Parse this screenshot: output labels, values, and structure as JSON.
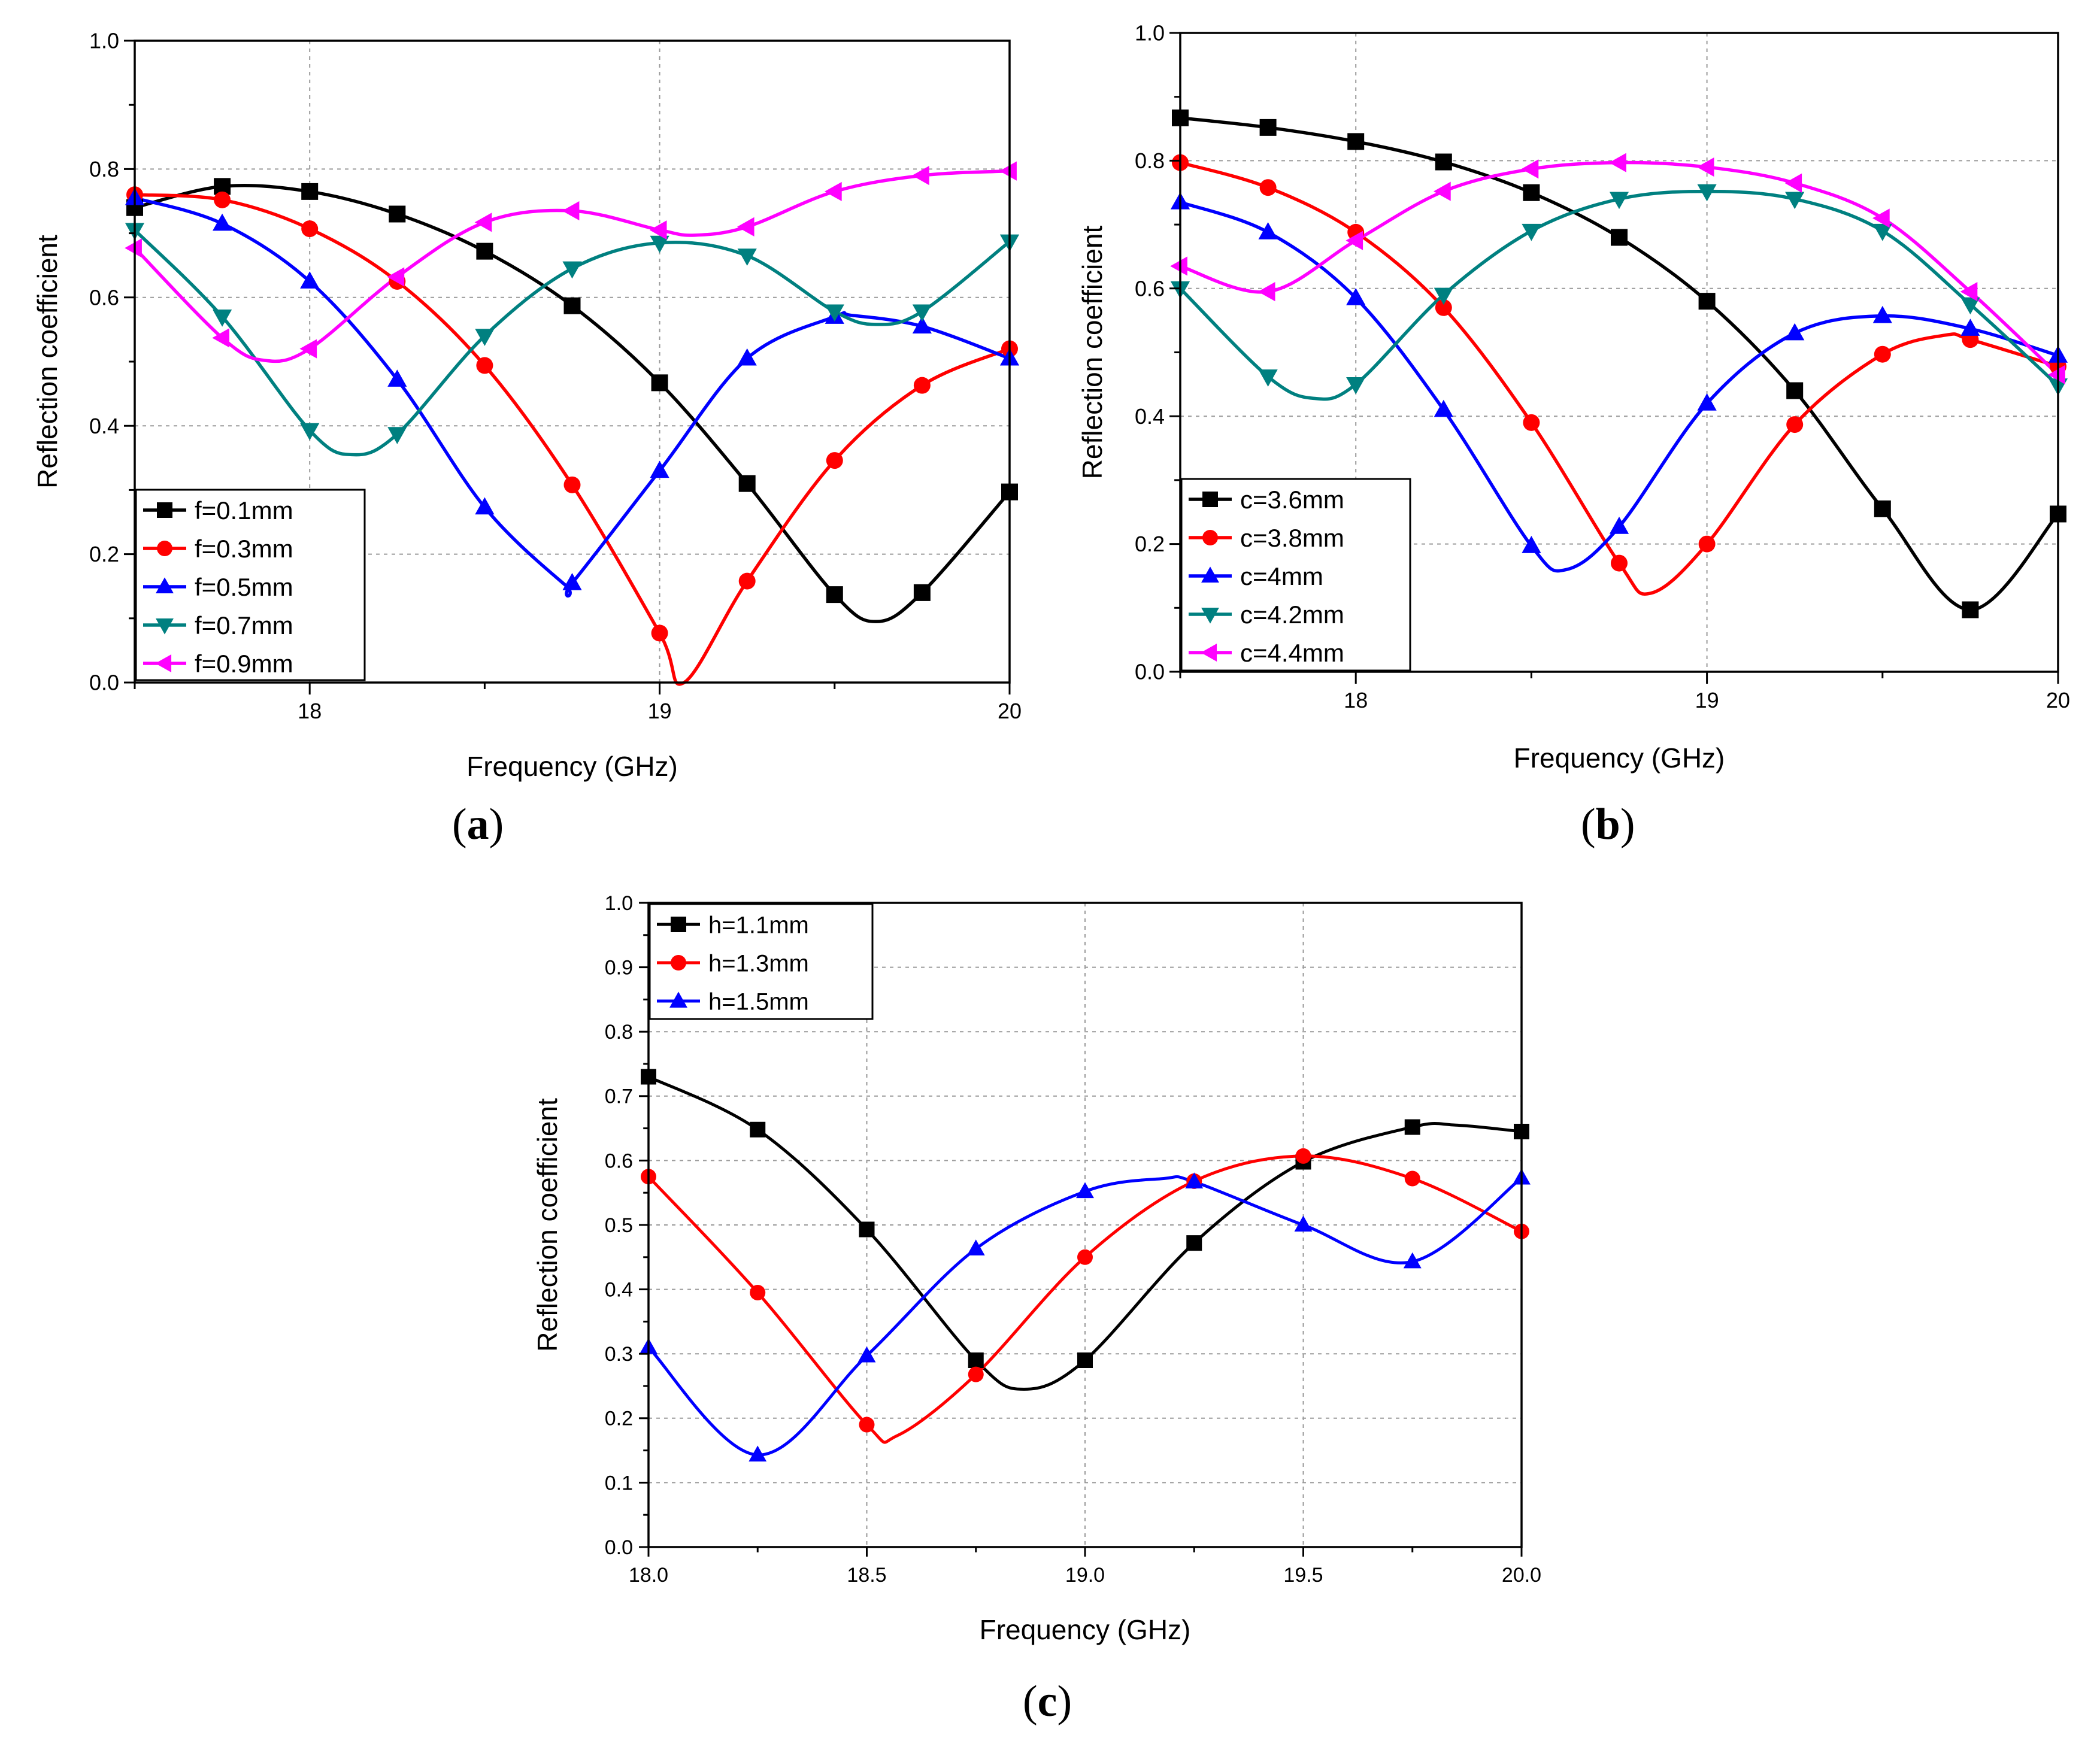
{
  "figure": {
    "captions": [
      {
        "open": "(",
        "letter": "a",
        "close": ")"
      },
      {
        "open": "(",
        "letter": "b",
        "close": ")"
      },
      {
        "open": "(",
        "letter": "c",
        "close": ")"
      }
    ]
  },
  "chart_data": [
    {
      "type": "line",
      "panel": "a",
      "xlabel": "Frequency (GHz)",
      "ylabel": "Reflection coefficient",
      "xlim": [
        17.5,
        20
      ],
      "ylim": [
        0,
        1
      ],
      "xticks": [
        18,
        19,
        20
      ],
      "xtick_labels": [
        "18",
        "19",
        "20"
      ],
      "yticks": [
        0,
        0.2,
        0.4,
        0.6,
        0.8,
        1.0
      ],
      "ytick_labels": [
        "0.0",
        "0.2",
        "0.4",
        "0.6",
        "0.8",
        "1.0"
      ],
      "grid": true,
      "legend_position": "bottom-left",
      "series": [
        {
          "name": "f=0.1mm",
          "color": "#000000",
          "marker": "square",
          "curve_x": [
            17.5,
            17.75,
            18,
            18.25,
            18.5,
            18.75,
            19,
            19.25,
            19.5,
            19.62,
            19.75,
            20
          ],
          "curve_y": [
            0.74,
            0.773,
            0.765,
            0.73,
            0.672,
            0.587,
            0.467,
            0.31,
            0.137,
            0.095,
            0.14,
            0.297
          ],
          "marker_x": [
            17.5,
            17.75,
            18,
            18.25,
            18.5,
            18.75,
            19,
            19.25,
            19.5,
            19.75,
            20
          ],
          "marker_y": [
            0.74,
            0.773,
            0.765,
            0.73,
            0.672,
            0.587,
            0.467,
            0.31,
            0.137,
            0.14,
            0.297
          ]
        },
        {
          "name": "f=0.3mm",
          "color": "#ff0000",
          "marker": "circle",
          "curve_x": [
            17.5,
            17.75,
            18,
            18.25,
            18.5,
            18.75,
            19,
            19.07,
            19.25,
            19.5,
            19.75,
            20
          ],
          "curve_y": [
            0.76,
            0.752,
            0.707,
            0.625,
            0.494,
            0.308,
            0.077,
            0.0,
            0.158,
            0.346,
            0.463,
            0.52
          ],
          "marker_x": [
            17.5,
            17.75,
            18,
            18.25,
            18.5,
            18.75,
            19,
            19.25,
            19.5,
            19.75,
            20
          ],
          "marker_y": [
            0.76,
            0.752,
            0.707,
            0.625,
            0.494,
            0.308,
            0.077,
            0.158,
            0.346,
            0.463,
            0.52
          ]
        },
        {
          "name": "f=0.5mm",
          "color": "#0000ff",
          "marker": "triangle-up",
          "curve_x": [
            17.5,
            17.75,
            18,
            18.25,
            18.5,
            18.73,
            18.75,
            19,
            19.25,
            19.5,
            19.55,
            19.75,
            20
          ],
          "curve_y": [
            0.755,
            0.715,
            0.625,
            0.472,
            0.273,
            0.152,
            0.155,
            0.33,
            0.505,
            0.57,
            0.572,
            0.555,
            0.505
          ],
          "marker_x": [
            17.5,
            17.75,
            18,
            18.25,
            18.5,
            18.75,
            19,
            19.25,
            19.5,
            19.75,
            20
          ],
          "marker_y": [
            0.755,
            0.715,
            0.625,
            0.472,
            0.273,
            0.155,
            0.33,
            0.505,
            0.57,
            0.555,
            0.505
          ]
        },
        {
          "name": "f=0.7mm",
          "color": "#008080",
          "marker": "triangle-down",
          "curve_x": [
            17.5,
            17.75,
            18,
            18.12,
            18.25,
            18.5,
            18.75,
            19,
            19.25,
            19.5,
            19.62,
            19.75,
            20
          ],
          "curve_y": [
            0.705,
            0.57,
            0.393,
            0.355,
            0.387,
            0.54,
            0.645,
            0.685,
            0.665,
            0.578,
            0.558,
            0.578,
            0.687
          ],
          "marker_x": [
            17.5,
            17.75,
            18,
            18.25,
            18.5,
            18.75,
            19,
            19.25,
            19.5,
            19.75,
            20
          ],
          "marker_y": [
            0.705,
            0.57,
            0.393,
            0.387,
            0.54,
            0.645,
            0.685,
            0.665,
            0.578,
            0.578,
            0.687
          ]
        },
        {
          "name": "f=0.9mm",
          "color": "#ff00ff",
          "marker": "triangle-left",
          "curve_x": [
            17.5,
            17.75,
            17.87,
            18,
            18.25,
            18.5,
            18.75,
            19,
            19.1,
            19.25,
            19.5,
            19.75,
            20
          ],
          "curve_y": [
            0.677,
            0.537,
            0.502,
            0.52,
            0.632,
            0.717,
            0.735,
            0.705,
            0.697,
            0.71,
            0.765,
            0.79,
            0.797
          ],
          "marker_x": [
            17.5,
            17.75,
            18,
            18.25,
            18.5,
            18.75,
            19,
            19.25,
            19.5,
            19.75,
            20
          ],
          "marker_y": [
            0.677,
            0.537,
            0.52,
            0.632,
            0.717,
            0.735,
            0.705,
            0.71,
            0.765,
            0.79,
            0.797
          ]
        }
      ]
    },
    {
      "type": "line",
      "panel": "b",
      "xlabel": "Frequency (GHz)",
      "ylabel": "Reflection coefficient",
      "xlim": [
        17.5,
        20
      ],
      "ylim": [
        0,
        1
      ],
      "xticks": [
        18,
        19,
        20
      ],
      "xtick_labels": [
        "18",
        "19",
        "20"
      ],
      "yticks": [
        0,
        0.2,
        0.4,
        0.6,
        0.8,
        1.0
      ],
      "ytick_labels": [
        "0.0",
        "0.2",
        "0.4",
        "0.6",
        "0.8",
        "1.0"
      ],
      "grid": true,
      "legend_position": "bottom-left",
      "series": [
        {
          "name": "c=3.6mm",
          "color": "#000000",
          "marker": "square",
          "curve_x": [
            17.5,
            17.75,
            18,
            18.25,
            18.5,
            18.75,
            19,
            19.25,
            19.5,
            19.75,
            20
          ],
          "curve_y": [
            0.867,
            0.852,
            0.83,
            0.798,
            0.75,
            0.68,
            0.58,
            0.44,
            0.255,
            0.097,
            0.247
          ],
          "marker_x": [
            17.5,
            17.75,
            18,
            18.25,
            18.5,
            18.75,
            19,
            19.25,
            19.5,
            19.75,
            20
          ],
          "marker_y": [
            0.867,
            0.852,
            0.83,
            0.798,
            0.75,
            0.68,
            0.58,
            0.44,
            0.255,
            0.097,
            0.247
          ]
        },
        {
          "name": "c=3.8mm",
          "color": "#ff0000",
          "marker": "circle",
          "curve_x": [
            17.5,
            17.75,
            18,
            18.25,
            18.5,
            18.75,
            18.84,
            19,
            19.25,
            19.5,
            19.68,
            19.75,
            20
          ],
          "curve_y": [
            0.797,
            0.758,
            0.688,
            0.57,
            0.39,
            0.17,
            0.123,
            0.2,
            0.387,
            0.497,
            0.527,
            0.52,
            0.478
          ],
          "marker_x": [
            17.5,
            17.75,
            18,
            18.25,
            18.5,
            18.75,
            19,
            19.25,
            19.5,
            19.75,
            20
          ],
          "marker_y": [
            0.797,
            0.758,
            0.688,
            0.57,
            0.39,
            0.17,
            0.2,
            0.387,
            0.497,
            0.52,
            0.478
          ]
        },
        {
          "name": "c=4mm",
          "color": "#0000ff",
          "marker": "triangle-up",
          "curve_x": [
            17.5,
            17.75,
            18,
            18.25,
            18.5,
            18.6,
            18.75,
            19,
            19.25,
            19.5,
            19.75,
            20
          ],
          "curve_y": [
            0.735,
            0.688,
            0.585,
            0.41,
            0.197,
            0.16,
            0.227,
            0.42,
            0.53,
            0.557,
            0.537,
            0.495
          ],
          "marker_x": [
            17.5,
            17.75,
            18,
            18.25,
            18.5,
            18.75,
            19,
            19.25,
            19.5,
            19.75,
            20
          ],
          "marker_y": [
            0.735,
            0.688,
            0.585,
            0.41,
            0.197,
            0.227,
            0.42,
            0.53,
            0.557,
            0.537,
            0.495
          ]
        },
        {
          "name": "c=4.2mm",
          "color": "#008080",
          "marker": "triangle-down",
          "curve_x": [
            17.5,
            17.75,
            17.88,
            18,
            18.25,
            18.5,
            18.75,
            19,
            19.25,
            19.5,
            19.75,
            20
          ],
          "curve_y": [
            0.6,
            0.462,
            0.428,
            0.45,
            0.59,
            0.69,
            0.74,
            0.752,
            0.74,
            0.69,
            0.575,
            0.448
          ],
          "marker_x": [
            17.5,
            17.75,
            18,
            18.25,
            18.5,
            18.75,
            19,
            19.25,
            19.5,
            19.75,
            20
          ],
          "marker_y": [
            0.6,
            0.462,
            0.45,
            0.59,
            0.69,
            0.74,
            0.752,
            0.74,
            0.69,
            0.575,
            0.448
          ]
        },
        {
          "name": "c=4.4mm",
          "color": "#ff00ff",
          "marker": "triangle-left",
          "curve_x": [
            17.5,
            17.75,
            18,
            18.25,
            18.5,
            18.75,
            19,
            19.25,
            19.5,
            19.75,
            20
          ],
          "curve_y": [
            0.635,
            0.595,
            0.675,
            0.752,
            0.787,
            0.797,
            0.79,
            0.765,
            0.71,
            0.595,
            0.465
          ],
          "marker_x": [
            17.5,
            17.75,
            18,
            18.25,
            18.5,
            18.75,
            19,
            19.25,
            19.5,
            19.75,
            20
          ],
          "marker_y": [
            0.635,
            0.595,
            0.675,
            0.752,
            0.787,
            0.797,
            0.79,
            0.765,
            0.71,
            0.595,
            0.465
          ]
        }
      ]
    },
    {
      "type": "line",
      "panel": "c",
      "xlabel": "Frequency (GHz)",
      "ylabel": "Reflection coefficient",
      "xlim": [
        18,
        20
      ],
      "ylim": [
        0,
        1
      ],
      "xticks": [
        18.0,
        18.5,
        19.0,
        19.5,
        20.0
      ],
      "xtick_labels": [
        "18.0",
        "18.5",
        "19.0",
        "19.5",
        "20.0"
      ],
      "yticks": [
        0,
        0.1,
        0.2,
        0.3,
        0.4,
        0.5,
        0.6,
        0.7,
        0.8,
        0.9,
        1.0
      ],
      "ytick_labels": [
        "0.0",
        "0.1",
        "0.2",
        "0.3",
        "0.4",
        "0.5",
        "0.6",
        "0.7",
        "0.8",
        "0.9",
        "1.0"
      ],
      "grid": true,
      "legend_position": "top-left",
      "series": [
        {
          "name": "h=1.1mm",
          "color": "#000000",
          "marker": "square",
          "curve_x": [
            18,
            18.25,
            18.5,
            18.75,
            18.86,
            19,
            19.25,
            19.5,
            19.75,
            19.85,
            20
          ],
          "curve_y": [
            0.73,
            0.648,
            0.493,
            0.29,
            0.245,
            0.29,
            0.472,
            0.598,
            0.652,
            0.655,
            0.645
          ],
          "marker_x": [
            18,
            18.25,
            18.5,
            18.75,
            19,
            19.25,
            19.5,
            19.75,
            20
          ],
          "marker_y": [
            0.73,
            0.648,
            0.493,
            0.29,
            0.29,
            0.472,
            0.598,
            0.652,
            0.645
          ]
        },
        {
          "name": "h=1.3mm",
          "color": "#ff0000",
          "marker": "circle",
          "curve_x": [
            18,
            18.25,
            18.5,
            18.57,
            18.75,
            19,
            19.25,
            19.5,
            19.75,
            20
          ],
          "curve_y": [
            0.575,
            0.395,
            0.19,
            0.173,
            0.268,
            0.45,
            0.568,
            0.607,
            0.572,
            0.49
          ],
          "marker_x": [
            18,
            18.25,
            18.5,
            18.75,
            19,
            19.25,
            19.5,
            19.75,
            20
          ],
          "marker_y": [
            0.575,
            0.395,
            0.19,
            0.268,
            0.45,
            0.568,
            0.607,
            0.572,
            0.49
          ]
        },
        {
          "name": "h=1.5mm",
          "color": "#0000ff",
          "marker": "triangle-up",
          "curve_x": [
            18,
            18.25,
            18.5,
            18.75,
            19,
            19.18,
            19.25,
            19.5,
            19.75,
            20
          ],
          "curve_y": [
            0.31,
            0.143,
            0.297,
            0.463,
            0.552,
            0.572,
            0.567,
            0.5,
            0.443,
            0.573
          ],
          "marker_x": [
            18,
            18.25,
            18.5,
            18.75,
            19,
            19.25,
            19.5,
            19.75,
            20
          ],
          "marker_y": [
            0.31,
            0.143,
            0.297,
            0.463,
            0.552,
            0.567,
            0.5,
            0.443,
            0.573
          ]
        }
      ]
    }
  ]
}
